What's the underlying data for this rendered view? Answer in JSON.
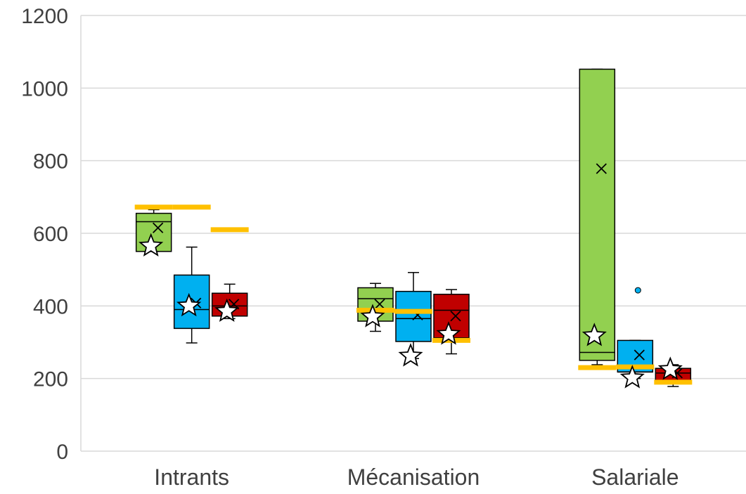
{
  "colors": {
    "series_a": "#92d050",
    "series_b": "#00b0f0",
    "series_c": "#c00000",
    "reference": "#ffc000",
    "grid": "#d9d9d9",
    "text": "#404040"
  },
  "chart_data": {
    "type": "box",
    "title": "",
    "xlabel": "",
    "ylabel": "",
    "ylim": [
      0,
      1200
    ],
    "yticks": [
      0,
      200,
      400,
      600,
      800,
      1000,
      1200
    ],
    "grid": true,
    "legend": "none",
    "categories": [
      "Intrants",
      "Mécanisation",
      "Salariale"
    ],
    "series": [
      {
        "color": "#92d050",
        "boxes": [
          {
            "whisker_low": 550,
            "q1": 550,
            "median": 632,
            "q3": 655,
            "whisker_high": 665,
            "mean": 615,
            "outliers": []
          },
          {
            "whisker_low": 330,
            "q1": 358,
            "median": 420,
            "q3": 450,
            "whisker_high": 462,
            "mean": 405,
            "outliers": []
          },
          {
            "whisker_low": 238,
            "q1": 250,
            "median": 272,
            "q3": 1052,
            "whisker_high": 1052,
            "mean": 778,
            "outliers": []
          }
        ],
        "stars": [
          565,
          370,
          318
        ],
        "reference": [
          672,
          388,
          230
        ]
      },
      {
        "color": "#00b0f0",
        "boxes": [
          {
            "whisker_low": 298,
            "q1": 338,
            "median": 390,
            "q3": 485,
            "whisker_high": 562,
            "mean": 408,
            "outliers": []
          },
          {
            "whisker_low": 255,
            "q1": 302,
            "median": 365,
            "q3": 440,
            "whisker_high": 492,
            "mean": 375,
            "outliers": []
          },
          {
            "whisker_low": 200,
            "q1": 218,
            "median": 218,
            "q3": 305,
            "whisker_high": 305,
            "mean": 265,
            "outliers": [
              443
            ]
          }
        ],
        "stars": [
          400,
          262,
          202
        ],
        "reference": [
          672,
          385,
          232
        ]
      },
      {
        "color": "#c00000",
        "boxes": [
          {
            "whisker_low": 365,
            "q1": 372,
            "median": 400,
            "q3": 435,
            "whisker_high": 460,
            "mean": 405,
            "outliers": []
          },
          {
            "whisker_low": 268,
            "q1": 312,
            "median": 388,
            "q3": 432,
            "whisker_high": 445,
            "mean": 372,
            "outliers": []
          },
          {
            "whisker_low": 178,
            "q1": 190,
            "median": 215,
            "q3": 228,
            "whisker_high": 238,
            "mean": 215,
            "outliers": []
          }
        ],
        "stars": [
          385,
          322,
          225
        ],
        "reference": [
          610,
          305,
          190
        ]
      }
    ]
  }
}
